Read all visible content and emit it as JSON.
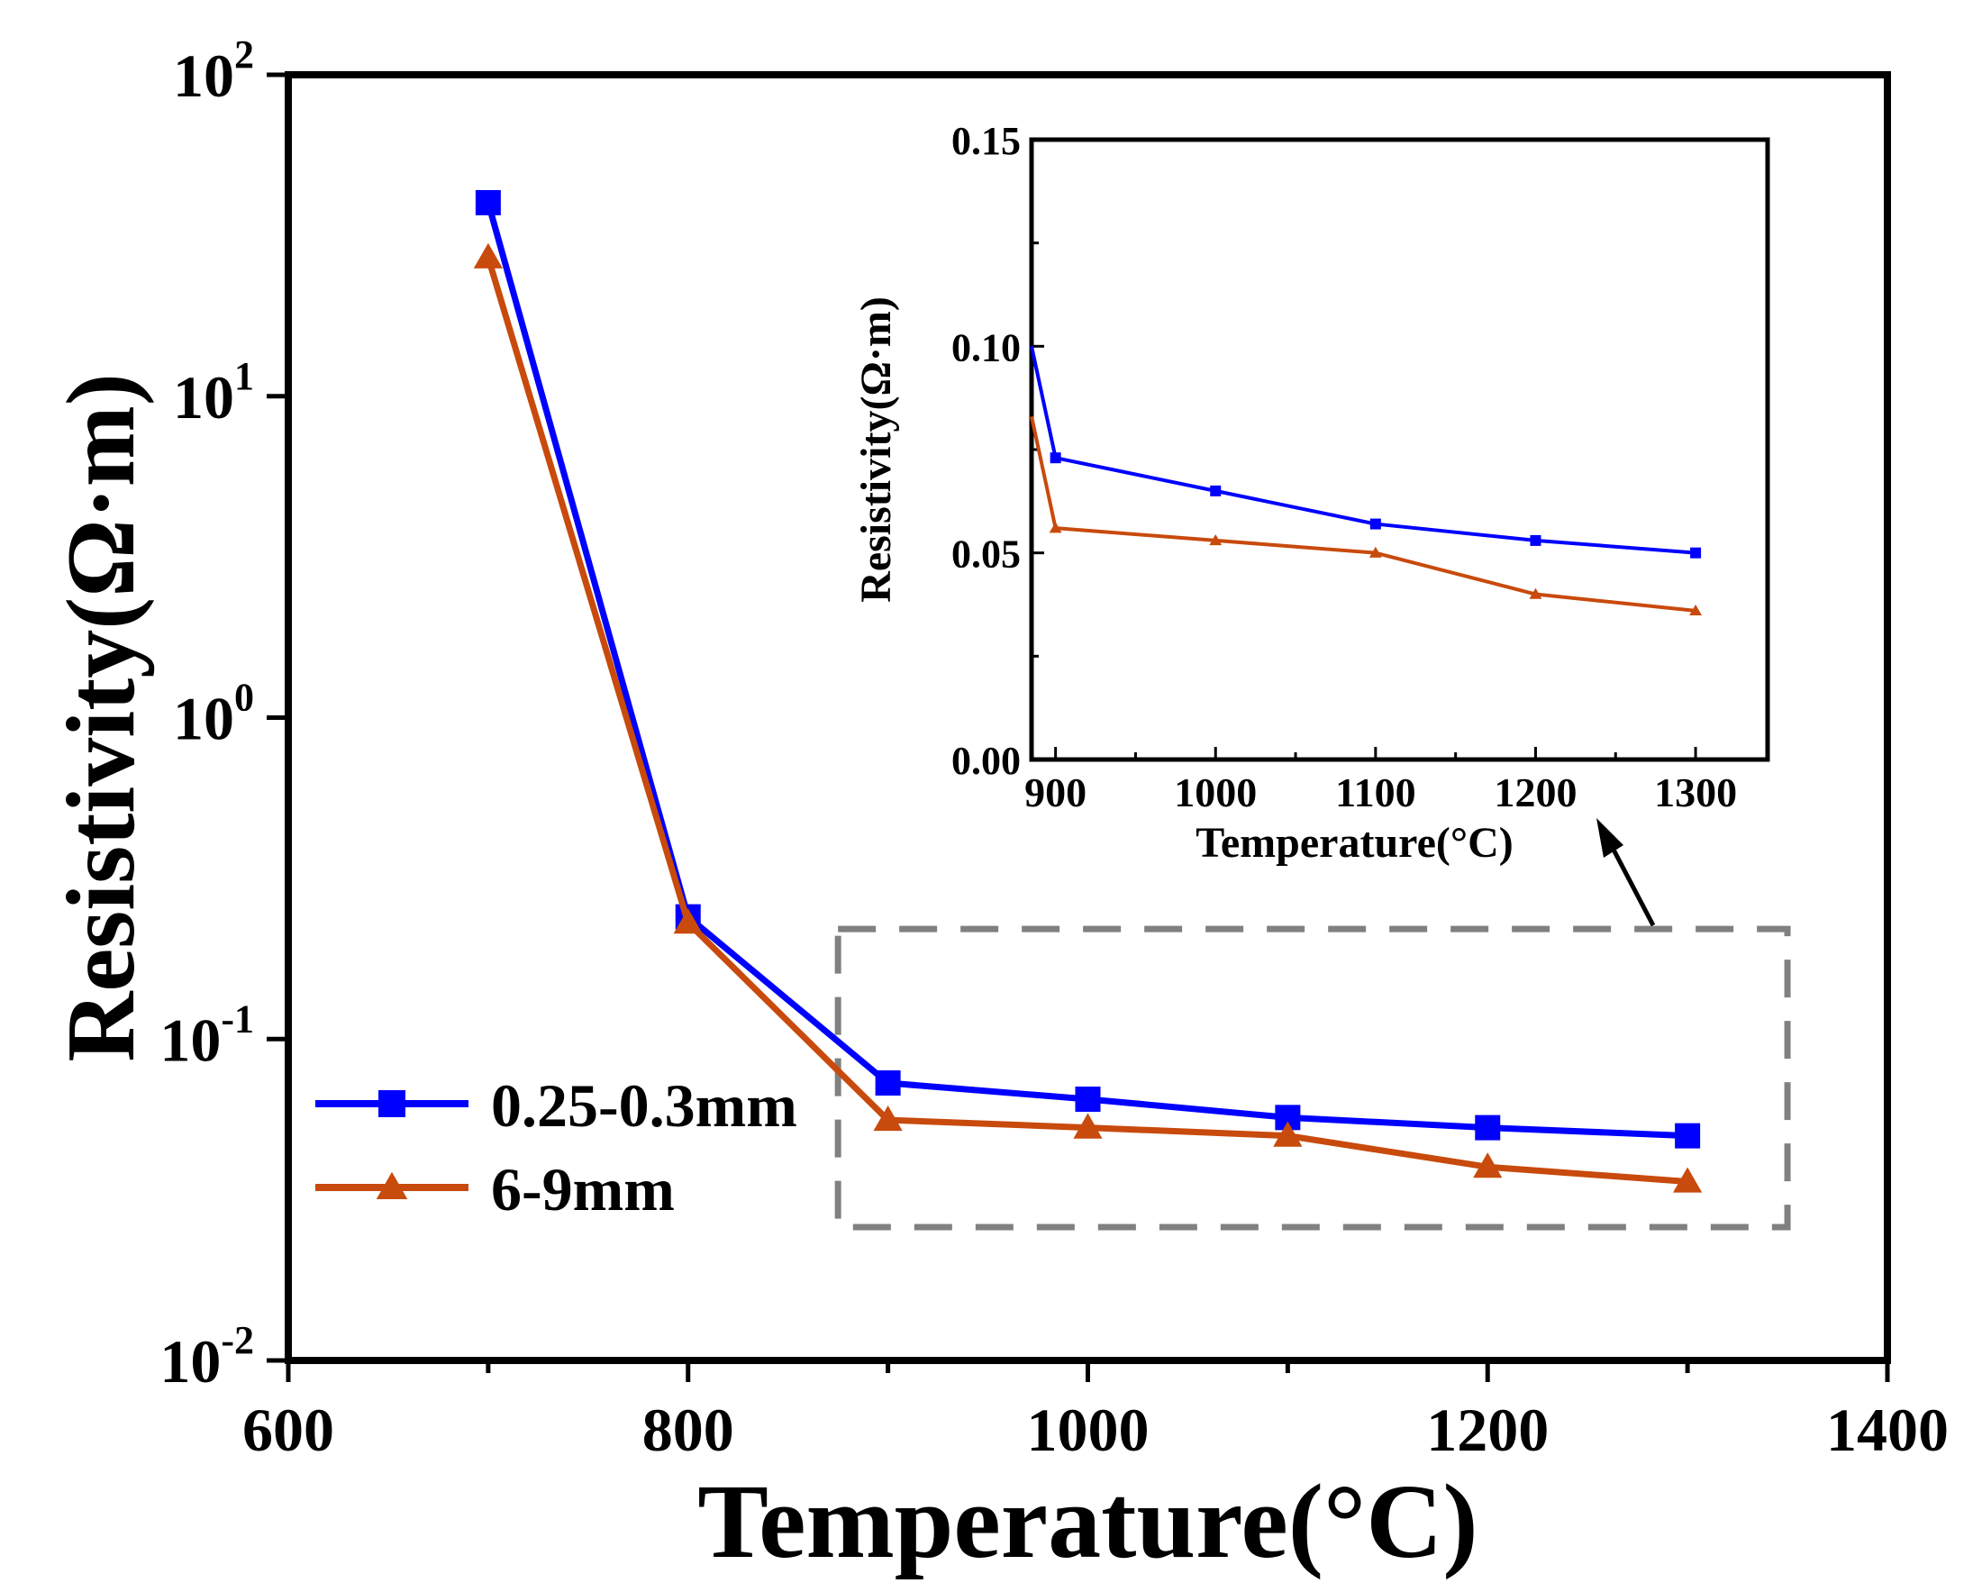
{
  "chart_data": [
    {
      "id": "main",
      "type": "line",
      "title": "",
      "xlabel": "Temperature(°C)",
      "ylabel": "Resistivity(Ω·m)",
      "xlim": [
        600,
        1400
      ],
      "ylim": [
        0.01,
        100
      ],
      "yscale": "log",
      "xticks": [
        600,
        800,
        1000,
        1200,
        1400
      ],
      "xtick_labels": [
        "600",
        "800",
        "1000",
        "1200",
        "1400"
      ],
      "yticks": [
        0.01,
        0.1,
        1,
        10,
        100
      ],
      "ytick_labels": [
        {
          "base": "10",
          "exp": "-2"
        },
        {
          "base": "10",
          "exp": "-1"
        },
        {
          "base": "10",
          "exp": "0"
        },
        {
          "base": "10",
          "exp": "1"
        },
        {
          "base": "10",
          "exp": "2"
        }
      ],
      "legend_position": "lower-left",
      "series": [
        {
          "name": "0.25-0.3mm",
          "color": "#0000ff",
          "marker": "square",
          "x": [
            700,
            800,
            900,
            1000,
            1100,
            1200,
            1300
          ],
          "y": [
            40,
            0.24,
            0.073,
            0.065,
            0.057,
            0.053,
            0.05
          ]
        },
        {
          "name": "6-9mm",
          "color": "#c84a0c",
          "marker": "triangle",
          "x": [
            700,
            800,
            900,
            1000,
            1100,
            1200,
            1300
          ],
          "y": [
            27,
            0.23,
            0.056,
            0.053,
            0.05,
            0.04,
            0.036
          ]
        }
      ],
      "annotation": {
        "type": "dashed-box",
        "x_range": [
          875,
          1350
        ],
        "y_range": [
          0.026,
          0.22
        ],
        "arrow": "points to inset"
      }
    },
    {
      "id": "inset",
      "type": "line",
      "title": "",
      "xlabel": "Temperature(°C)",
      "ylabel": "Resistivity(Ω·m)",
      "xlim": [
        885,
        1345
      ],
      "ylim": [
        0,
        0.15
      ],
      "xticks": [
        900,
        1000,
        1100,
        1200,
        1300
      ],
      "xtick_labels": [
        "900",
        "1000",
        "1100",
        "1200",
        "1300"
      ],
      "yticks": [
        0,
        0.05,
        0.1,
        0.15
      ],
      "ytick_labels": [
        "0.00",
        "0.05",
        "0.10",
        "0.15"
      ],
      "series": [
        {
          "name": "0.25-0.3mm",
          "color": "#0000ff",
          "marker": "square",
          "x": [
            885,
            900,
            1000,
            1100,
            1200,
            1300
          ],
          "y": [
            0.1,
            0.073,
            0.065,
            0.057,
            0.053,
            0.05
          ]
        },
        {
          "name": "6-9mm",
          "color": "#c84a0c",
          "marker": "triangle",
          "x": [
            885,
            900,
            1000,
            1100,
            1200,
            1300
          ],
          "y": [
            0.083,
            0.056,
            0.053,
            0.05,
            0.04,
            0.036
          ]
        }
      ]
    }
  ]
}
